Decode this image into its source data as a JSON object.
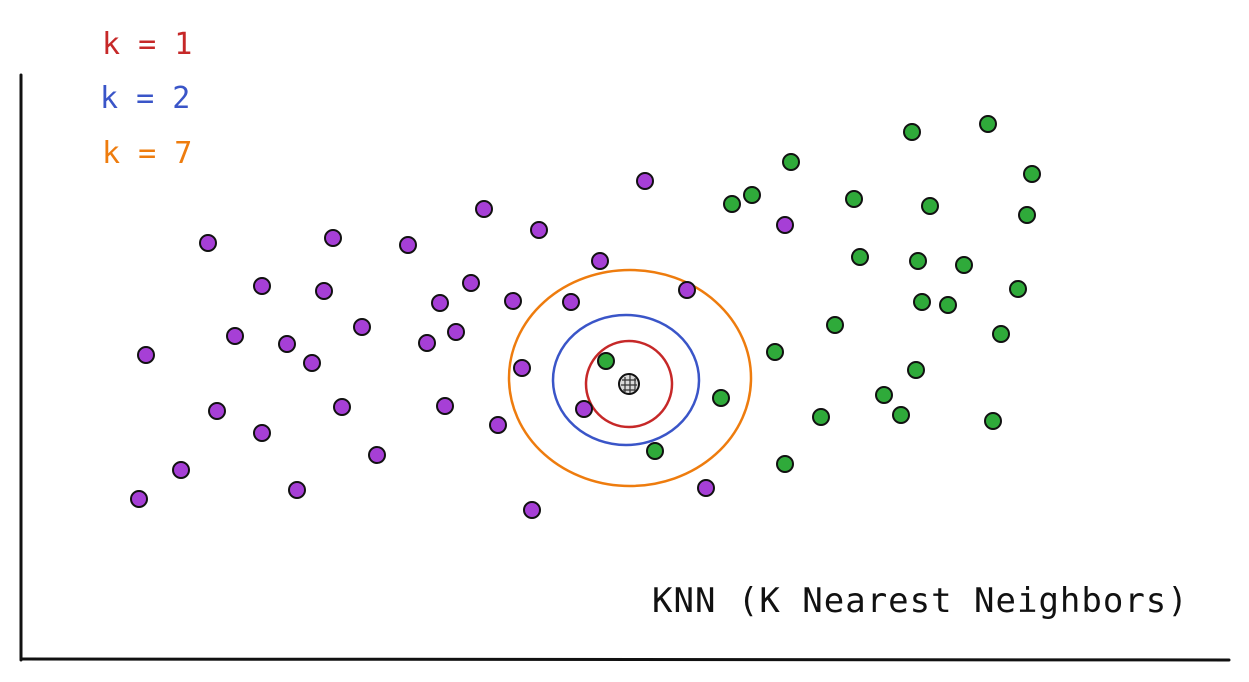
{
  "title": "KNN (K Nearest Neighbors)",
  "legend": [
    {
      "label": "k = 1",
      "color": "#c62828"
    },
    {
      "label": "k = 2",
      "color": "#3a55c8"
    },
    {
      "label": "k = 7",
      "color": "#ee7c0e"
    }
  ],
  "colors": {
    "class_a": "#a63fd6",
    "class_b": "#2faa3a",
    "query": "#8a8a8a",
    "axis": "#111111",
    "outline": "#111111"
  }
}
